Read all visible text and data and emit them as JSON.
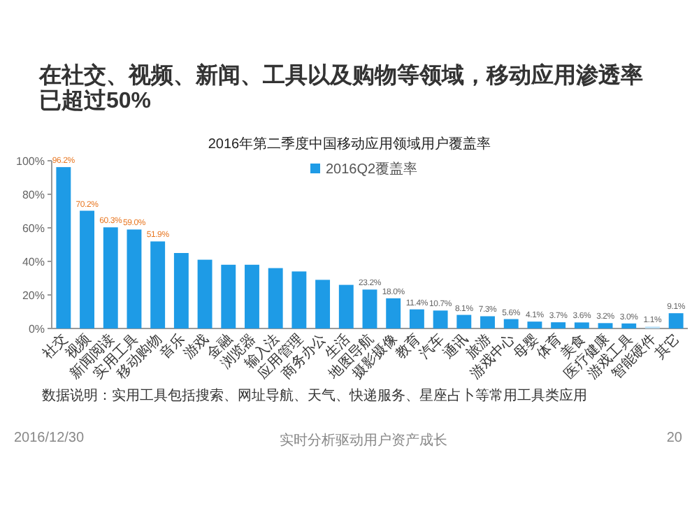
{
  "chart_data": {
    "type": "bar",
    "title": "在社交、视频、新闻、工具以及购物等领域，移动应用渗透率已超过50%",
    "subtitle": "2016年第二季度中国移动应用领域用户覆盖率",
    "categories": [
      "社交",
      "视频",
      "新闻阅读",
      "实用工具",
      "移动购物",
      "音乐",
      "游戏",
      "金融",
      "浏览器",
      "输入法",
      "应用管理",
      "商务办公",
      "生活",
      "地图导航",
      "摄影摄像",
      "教育",
      "汽车",
      "通讯",
      "旅游",
      "游戏中心",
      "母婴",
      "体育",
      "美食",
      "医疗健康",
      "游戏工具",
      "智能硬件",
      "其它"
    ],
    "series": [
      {
        "name": "2016Q2覆盖率",
        "color": "#1e9be6",
        "values": [
          96.2,
          70.2,
          60.3,
          59.0,
          51.9,
          45,
          41,
          38,
          38,
          36,
          34,
          29,
          26,
          23.2,
          18.0,
          11.4,
          10.7,
          8.1,
          7.3,
          5.6,
          4.1,
          3.7,
          3.6,
          3.2,
          3.0,
          1.1,
          9.1
        ],
        "colors": [
          "#1e9be6",
          "#1e9be6",
          "#1e9be6",
          "#1e9be6",
          "#1e9be6",
          "#1e9be6",
          "#1e9be6",
          "#1e9be6",
          "#1e9be6",
          "#1e9be6",
          "#1e9be6",
          "#1e9be6",
          "#1e9be6",
          "#1e9be6",
          "#1e9be6",
          "#1e9be6",
          "#1e9be6",
          "#1e9be6",
          "#1e9be6",
          "#1e9be6",
          "#1e9be6",
          "#1e9be6",
          "#1e9be6",
          "#1e9be6",
          "#1e9be6",
          "#b9def5",
          "#1e9be6"
        ],
        "value_labels": [
          "96.2%",
          "70.2%",
          "60.3%",
          "59.0%",
          "51.9%",
          null,
          null,
          null,
          null,
          null,
          null,
          null,
          null,
          "23.2%",
          "18.0%",
          "11.4%",
          "10.7%",
          "8.1%",
          "7.3%",
          "5.6%",
          "4.1%",
          "3.7%",
          "3.6%",
          "3.2%",
          "3.0%",
          "1.1%",
          "9.1%"
        ]
      }
    ],
    "ylim": [
      0,
      100
    ],
    "yticks": [
      {
        "value": 0,
        "label": "0%"
      },
      {
        "value": 20,
        "label": "20%"
      },
      {
        "value": 40,
        "label": "40%"
      },
      {
        "value": 60,
        "label": "60%"
      },
      {
        "value": 80,
        "label": "80%"
      },
      {
        "value": 100,
        "label": "100%"
      }
    ],
    "legend": "top right",
    "grid": false,
    "annotations": [
      "数据说明：实用工具包括搜索、网址导航、天气、快递服务、星座占卜等常用工具类应用",
      "2016/12/30",
      "实时分析驱动用户资产成长",
      "20"
    ]
  }
}
